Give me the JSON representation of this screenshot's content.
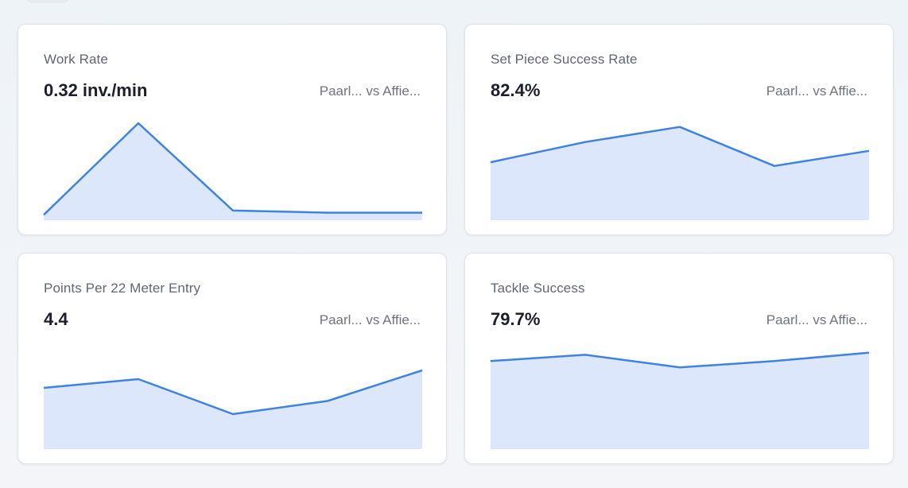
{
  "cards": [
    {
      "title": "Work Rate",
      "value": "0.32 inv./min",
      "subtitle": "Paarl... vs Affie...",
      "series": [
        0.9,
        1.76,
        0.94,
        0.92,
        0.92
      ]
    },
    {
      "title": "Set Piece Success Rate",
      "value": "82.4%",
      "subtitle": "Paarl... vs Affie...",
      "series": [
        79.6,
        81.2,
        82.4,
        79.3,
        80.5
      ]
    },
    {
      "title": "Points Per 22 Meter Entry",
      "value": "4.4",
      "subtitle": "Paarl... vs Affie...",
      "series": [
        3.8,
        4.0,
        3.2,
        3.5,
        4.2
      ]
    },
    {
      "title": "Tackle Success",
      "value": "79.7%",
      "subtitle": "Paarl... vs Affie...",
      "series": [
        79.2,
        79.5,
        78.9,
        79.2,
        79.6
      ]
    }
  ],
  "colors": {
    "line": "#3f82df",
    "fill": "#dde7fb"
  }
}
